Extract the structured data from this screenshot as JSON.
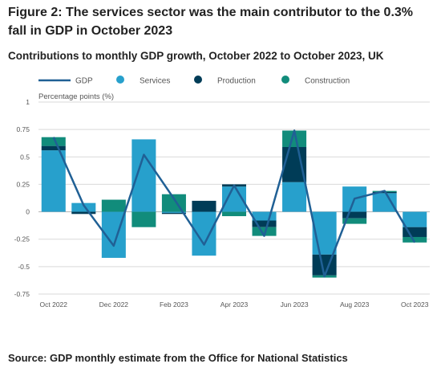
{
  "title": "Figure 2: The services sector was the main contributor to the 0.3% fall in GDP in October 2023",
  "subtitle": "Contributions to monthly GDP growth, October 2022 to October 2023, UK",
  "source": "Source: GDP monthly estimate from the Office for National Statistics",
  "colors": {
    "services": "#27a0cc",
    "production": "#003c57",
    "construction": "#118c7b",
    "gdp": "#206095",
    "grid": "#d9d9d9",
    "zero": "#b3b3b3"
  },
  "chart_data": {
    "type": "bar",
    "stacked": true,
    "ylabel": "Percentage points (%)",
    "ylim": [
      -0.75,
      1
    ],
    "yticks": [
      1,
      0.75,
      0.5,
      0.25,
      0,
      -0.25,
      -0.5,
      -0.75
    ],
    "ytick_labels": [
      "1",
      "0.75",
      "0.5",
      "0.25",
      "0",
      "-0.25",
      "-0.5",
      "-0.75"
    ],
    "categories": [
      "Oct 2022",
      "Nov 2022",
      "Dec 2022",
      "Jan 2023",
      "Feb 2023",
      "Mar 2023",
      "Apr 2023",
      "May 2023",
      "Jun 2023",
      "Jul 2023",
      "Aug 2023",
      "Sep 2023",
      "Oct 2023"
    ],
    "xtick_labels": [
      "Oct 2022",
      "",
      "Dec 2022",
      "",
      "Feb 2023",
      "",
      "Apr 2023",
      "",
      "Jun 2023",
      "",
      "Aug 2023",
      "",
      "Oct 2023"
    ],
    "grid": true,
    "legend": "top-left",
    "series": [
      {
        "name": "Services",
        "kind": "bar",
        "values": [
          0.56,
          0.08,
          -0.42,
          0.66,
          -0.01,
          -0.4,
          0.23,
          -0.08,
          0.27,
          -0.39,
          0.23,
          0.17,
          -0.14
        ]
      },
      {
        "name": "Production",
        "kind": "bar",
        "values": [
          0.04,
          -0.02,
          0.0,
          0.0,
          -0.01,
          0.1,
          0.02,
          -0.06,
          0.32,
          -0.19,
          -0.06,
          0.01,
          -0.09
        ]
      },
      {
        "name": "Construction",
        "kind": "bar",
        "values": [
          0.08,
          0.0,
          0.11,
          -0.14,
          0.16,
          0.0,
          -0.04,
          -0.08,
          0.15,
          -0.02,
          -0.05,
          0.01,
          -0.05
        ]
      },
      {
        "name": "GDP",
        "kind": "line",
        "values": [
          0.68,
          0.06,
          -0.31,
          0.52,
          0.12,
          -0.3,
          0.24,
          -0.22,
          0.74,
          -0.59,
          0.12,
          0.19,
          -0.28
        ]
      }
    ]
  }
}
